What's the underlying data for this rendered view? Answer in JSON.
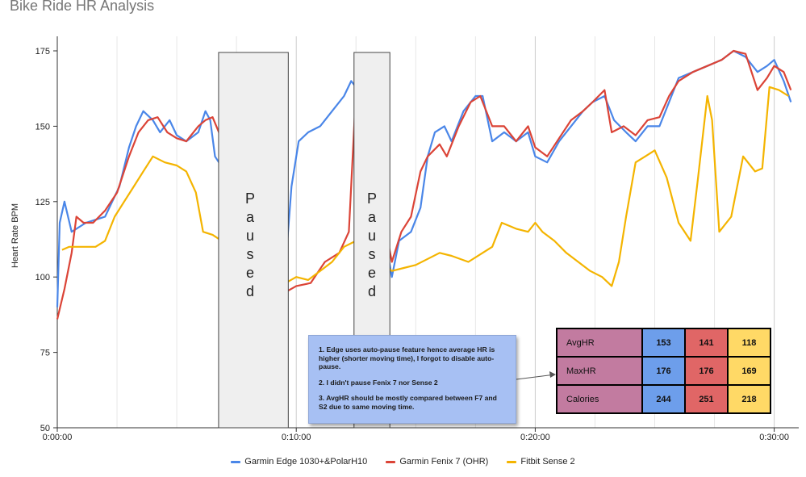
{
  "chart_data": {
    "type": "line",
    "title": "Bike Ride HR Analysis",
    "xlabel": "",
    "ylabel": "Heart Rate BPM",
    "xlim": [
      "0:00:00",
      "0:30:45"
    ],
    "ylim": [
      50,
      175
    ],
    "x_ticks": [
      "0:00:00",
      "0:10:00",
      "0:20:00",
      "0:30:00"
    ],
    "y_ticks": [
      50,
      75,
      100,
      125,
      150,
      175
    ],
    "grid": "vertical",
    "legend": "bottom",
    "series": [
      {
        "name": "Garmin Edge 1030+&PolarH10",
        "color": "#4a86e8",
        "points": [
          [
            0,
            90
          ],
          [
            0.1,
            118
          ],
          [
            0.3,
            125
          ],
          [
            0.6,
            115
          ],
          [
            1.2,
            118
          ],
          [
            2,
            120
          ],
          [
            2.6,
            130
          ],
          [
            3.0,
            143
          ],
          [
            3.3,
            150
          ],
          [
            3.6,
            155
          ],
          [
            4.0,
            152
          ],
          [
            4.3,
            148
          ],
          [
            4.7,
            152
          ],
          [
            5.0,
            147
          ],
          [
            5.4,
            145
          ],
          [
            5.9,
            148
          ],
          [
            6.2,
            155
          ],
          [
            6.4,
            152
          ],
          [
            6.6,
            140
          ],
          [
            9.55,
            104
          ],
          [
            9.8,
            130
          ],
          [
            10.1,
            145
          ],
          [
            10.5,
            148
          ],
          [
            11.0,
            150
          ],
          [
            11.5,
            155
          ],
          [
            12.0,
            160
          ],
          [
            12.3,
            165
          ],
          [
            12.6,
            162
          ],
          [
            12.9,
            150
          ],
          [
            14.0,
            100
          ],
          [
            14.3,
            112
          ],
          [
            14.8,
            115
          ],
          [
            15.2,
            123
          ],
          [
            15.5,
            140
          ],
          [
            15.8,
            148
          ],
          [
            16.2,
            150
          ],
          [
            16.5,
            145
          ],
          [
            17.0,
            155
          ],
          [
            17.5,
            160
          ],
          [
            17.8,
            160
          ],
          [
            18.2,
            145
          ],
          [
            18.7,
            148
          ],
          [
            19.2,
            145
          ],
          [
            19.7,
            148
          ],
          [
            20.0,
            140
          ],
          [
            20.5,
            138
          ],
          [
            21.0,
            145
          ],
          [
            21.5,
            150
          ],
          [
            22.0,
            155
          ],
          [
            22.4,
            158
          ],
          [
            22.9,
            160
          ],
          [
            23.3,
            152
          ],
          [
            23.8,
            148
          ],
          [
            24.2,
            145
          ],
          [
            24.7,
            150
          ],
          [
            25.2,
            150
          ],
          [
            25.6,
            158
          ],
          [
            26.0,
            166
          ],
          [
            26.6,
            168
          ],
          [
            27.2,
            170
          ],
          [
            27.8,
            172
          ],
          [
            28.3,
            175
          ],
          [
            28.8,
            173
          ],
          [
            29.3,
            168
          ],
          [
            29.7,
            170
          ],
          [
            30.0,
            172
          ],
          [
            30.4,
            165
          ],
          [
            30.7,
            158
          ]
        ]
      },
      {
        "name": "Garmin Fenix 7 (OHR)",
        "color": "#db4437",
        "points": [
          [
            0,
            86
          ],
          [
            0.3,
            96
          ],
          [
            0.6,
            108
          ],
          [
            0.8,
            120
          ],
          [
            1.1,
            118
          ],
          [
            1.5,
            118
          ],
          [
            2.0,
            122
          ],
          [
            2.5,
            128
          ],
          [
            3.0,
            140
          ],
          [
            3.4,
            148
          ],
          [
            3.8,
            152
          ],
          [
            4.2,
            153
          ],
          [
            4.6,
            148
          ],
          [
            5.0,
            146
          ],
          [
            5.4,
            145
          ],
          [
            5.9,
            150
          ],
          [
            6.2,
            152
          ],
          [
            6.5,
            153
          ],
          [
            9.55,
            95
          ],
          [
            10.0,
            97
          ],
          [
            10.6,
            98
          ],
          [
            11.2,
            105
          ],
          [
            11.8,
            108
          ],
          [
            12.2,
            115
          ],
          [
            12.5,
            162
          ],
          [
            12.8,
            155
          ],
          [
            14.0,
            105
          ],
          [
            14.4,
            115
          ],
          [
            14.8,
            120
          ],
          [
            15.2,
            135
          ],
          [
            15.5,
            140
          ],
          [
            16.0,
            144
          ],
          [
            16.3,
            140
          ],
          [
            16.8,
            150
          ],
          [
            17.3,
            158
          ],
          [
            17.7,
            160
          ],
          [
            18.2,
            150
          ],
          [
            18.7,
            150
          ],
          [
            19.2,
            145
          ],
          [
            19.7,
            150
          ],
          [
            20.0,
            143
          ],
          [
            20.5,
            140
          ],
          [
            21.0,
            146
          ],
          [
            21.5,
            152
          ],
          [
            22.0,
            155
          ],
          [
            22.4,
            158
          ],
          [
            22.9,
            162
          ],
          [
            23.2,
            148
          ],
          [
            23.7,
            150
          ],
          [
            24.2,
            147
          ],
          [
            24.7,
            152
          ],
          [
            25.2,
            153
          ],
          [
            25.6,
            160
          ],
          [
            26.0,
            165
          ],
          [
            26.6,
            168
          ],
          [
            27.2,
            170
          ],
          [
            27.8,
            172
          ],
          [
            28.3,
            175
          ],
          [
            28.8,
            174
          ],
          [
            29.3,
            162
          ],
          [
            29.7,
            166
          ],
          [
            30.0,
            170
          ],
          [
            30.4,
            168
          ],
          [
            30.7,
            162
          ]
        ]
      },
      {
        "name": "Fitbit Sense 2",
        "color": "#f4b400",
        "points": [
          [
            0.2,
            109
          ],
          [
            0.5,
            110
          ],
          [
            1.0,
            110
          ],
          [
            1.6,
            110
          ],
          [
            2.0,
            112
          ],
          [
            2.4,
            120
          ],
          [
            2.8,
            125
          ],
          [
            3.2,
            130
          ],
          [
            3.6,
            135
          ],
          [
            4.0,
            140
          ],
          [
            4.5,
            138
          ],
          [
            5.0,
            137
          ],
          [
            5.4,
            135
          ],
          [
            5.8,
            128
          ],
          [
            6.1,
            115
          ],
          [
            6.5,
            114
          ],
          [
            9.55,
            98
          ],
          [
            10.0,
            100
          ],
          [
            10.5,
            99
          ],
          [
            11.0,
            102
          ],
          [
            11.5,
            105
          ],
          [
            12.0,
            110
          ],
          [
            12.5,
            112
          ],
          [
            14.0,
            102
          ],
          [
            14.5,
            103
          ],
          [
            15.0,
            104
          ],
          [
            15.5,
            106
          ],
          [
            16.0,
            108
          ],
          [
            16.5,
            107
          ],
          [
            17.2,
            105
          ],
          [
            17.8,
            108
          ],
          [
            18.2,
            110
          ],
          [
            18.6,
            118
          ],
          [
            19.2,
            116
          ],
          [
            19.7,
            115
          ],
          [
            20.0,
            118
          ],
          [
            20.3,
            115
          ],
          [
            20.8,
            112
          ],
          [
            21.3,
            108
          ],
          [
            21.8,
            105
          ],
          [
            22.3,
            102
          ],
          [
            22.8,
            100
          ],
          [
            23.2,
            97
          ],
          [
            23.5,
            105
          ],
          [
            23.8,
            120
          ],
          [
            24.2,
            138
          ],
          [
            24.6,
            140
          ],
          [
            25.0,
            142
          ],
          [
            25.5,
            133
          ],
          [
            26.0,
            118
          ],
          [
            26.5,
            112
          ],
          [
            26.8,
            132
          ],
          [
            27.2,
            160
          ],
          [
            27.4,
            152
          ],
          [
            27.7,
            115
          ],
          [
            28.2,
            120
          ],
          [
            28.7,
            140
          ],
          [
            29.2,
            135
          ],
          [
            29.5,
            136
          ],
          [
            29.8,
            163
          ],
          [
            30.2,
            162
          ],
          [
            30.6,
            160
          ]
        ]
      }
    ],
    "annotations": {
      "paused_label": "Paused",
      "pauses": [
        {
          "from": "0:06:45",
          "to": "0:09:40"
        },
        {
          "from": "0:12:25",
          "to": "0:13:55"
        }
      ]
    }
  },
  "note": {
    "lines": [
      "1. Edge uses auto-pause feature hence average HR is higher (shorter moving time), I forgot to disable auto-pause.",
      "2. I didn't pause Fenix 7 nor Sense 2",
      "3. AvgHR should be mostly compared between F7 and S2 due to same moving time."
    ]
  },
  "stats_table": {
    "rows": [
      {
        "label": "AvgHR",
        "values": [
          "153",
          "141",
          "118"
        ]
      },
      {
        "label": "MaxHR",
        "values": [
          "176",
          "176",
          "169"
        ]
      },
      {
        "label": "Calories",
        "values": [
          "244",
          "251",
          "218"
        ]
      }
    ],
    "column_colors": [
      "#6d9eeb",
      "#e06666",
      "#ffd966"
    ],
    "label_color": "#c27ba0"
  }
}
